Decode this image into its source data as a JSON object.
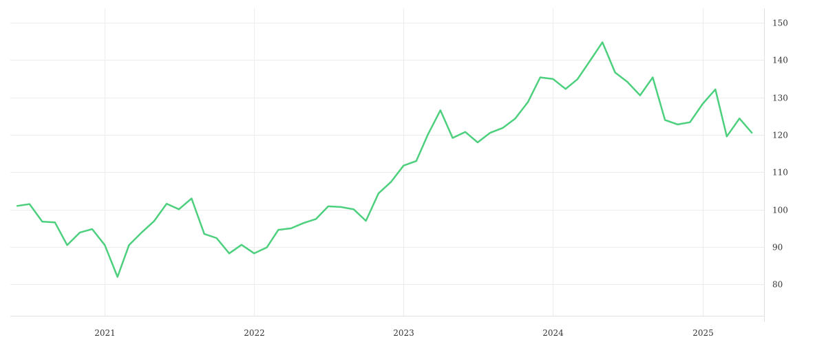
{
  "chart_data": {
    "type": "line",
    "x_type": "date",
    "xlim": [
      "2020-05-15",
      "2025-05-31"
    ],
    "ylim": [
      71.6,
      153.9
    ],
    "grid": true,
    "legend": "none",
    "x_ticks": [
      {
        "label": "2021",
        "date": "2021-01-01"
      },
      {
        "label": "2022",
        "date": "2022-01-01"
      },
      {
        "label": "2023",
        "date": "2023-01-01"
      },
      {
        "label": "2024",
        "date": "2024-01-01"
      },
      {
        "label": "2025",
        "date": "2025-01-01"
      }
    ],
    "y_ticks": [
      80,
      90,
      100,
      110,
      120,
      130,
      140,
      150
    ],
    "series": [
      {
        "color": "#4cd07d",
        "points": [
          [
            "2020-06-01",
            101.0
          ],
          [
            "2020-07-01",
            101.5
          ],
          [
            "2020-08-01",
            96.8
          ],
          [
            "2020-09-01",
            96.6
          ],
          [
            "2020-10-01",
            90.5
          ],
          [
            "2020-11-01",
            93.9
          ],
          [
            "2020-12-01",
            94.8
          ],
          [
            "2021-01-01",
            90.5
          ],
          [
            "2021-02-01",
            82.0
          ],
          [
            "2021-03-01",
            90.5
          ],
          [
            "2021-04-01",
            93.9
          ],
          [
            "2021-05-01",
            96.9
          ],
          [
            "2021-06-01",
            101.6
          ],
          [
            "2021-07-01",
            100.1
          ],
          [
            "2021-08-01",
            103.0
          ],
          [
            "2021-09-01",
            93.5
          ],
          [
            "2021-10-01",
            92.4
          ],
          [
            "2021-11-01",
            88.3
          ],
          [
            "2021-12-01",
            90.6
          ],
          [
            "2022-01-01",
            88.3
          ],
          [
            "2022-02-01",
            89.9
          ],
          [
            "2022-03-01",
            94.6
          ],
          [
            "2022-04-01",
            95.0
          ],
          [
            "2022-05-01",
            96.4
          ],
          [
            "2022-06-01",
            97.5
          ],
          [
            "2022-07-01",
            100.9
          ],
          [
            "2022-08-01",
            100.7
          ],
          [
            "2022-09-01",
            100.1
          ],
          [
            "2022-10-01",
            97.0
          ],
          [
            "2022-11-01",
            104.4
          ],
          [
            "2022-12-01",
            107.4
          ],
          [
            "2023-01-01",
            111.8
          ],
          [
            "2023-02-01",
            113.0
          ],
          [
            "2023-03-01",
            120.0
          ],
          [
            "2023-04-01",
            126.6
          ],
          [
            "2023-05-01",
            119.2
          ],
          [
            "2023-06-01",
            120.8
          ],
          [
            "2023-07-01",
            118.0
          ],
          [
            "2023-08-01",
            120.6
          ],
          [
            "2023-09-01",
            121.9
          ],
          [
            "2023-10-01",
            124.4
          ],
          [
            "2023-11-01",
            128.8
          ],
          [
            "2023-12-01",
            135.4
          ],
          [
            "2024-01-01",
            135.0
          ],
          [
            "2024-02-01",
            132.3
          ],
          [
            "2024-03-01",
            134.9
          ],
          [
            "2024-04-01",
            139.9
          ],
          [
            "2024-05-01",
            144.8
          ],
          [
            "2024-06-01",
            136.7
          ],
          [
            "2024-07-01",
            134.2
          ],
          [
            "2024-08-01",
            130.6
          ],
          [
            "2024-09-01",
            135.4
          ],
          [
            "2024-10-01",
            124.0
          ],
          [
            "2024-11-01",
            122.8
          ],
          [
            "2024-12-01",
            123.4
          ],
          [
            "2025-01-01",
            128.3
          ],
          [
            "2025-02-01",
            132.2
          ],
          [
            "2025-03-01",
            119.6
          ],
          [
            "2025-04-01",
            124.4
          ],
          [
            "2025-05-01",
            120.6
          ]
        ]
      }
    ]
  }
}
